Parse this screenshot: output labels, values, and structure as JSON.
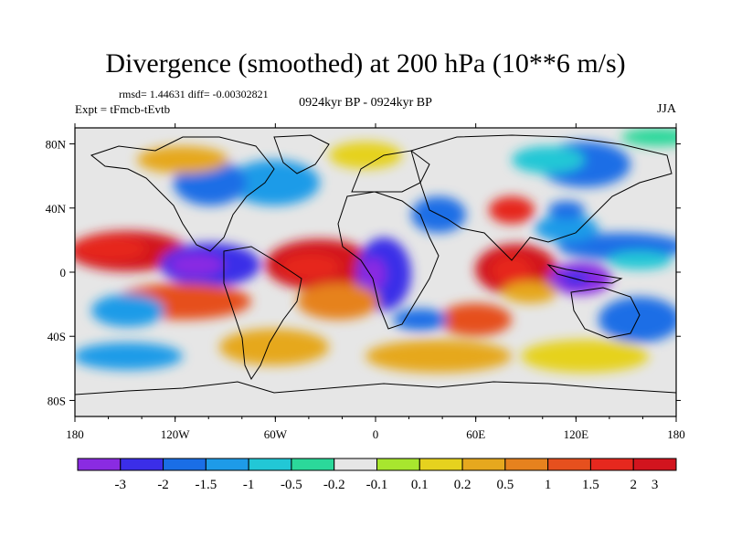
{
  "title": "Divergence (smoothed) at 200 hPa (10**6 m/s)",
  "stats_line": "rmsd= 1.44631 diff= -0.00302821",
  "expt_line": "Expt = tFmcb-tEvtb",
  "period_line": "0924kyr BP - 0924kyr BP",
  "season": "JJA",
  "colors": {
    "levels": [
      "#8a2be2",
      "#3b2ee8",
      "#1a6ee6",
      "#1e9be8",
      "#22c7d6",
      "#2bd89a",
      "#e6e6e6",
      "#a8e62e",
      "#e6d21e",
      "#e6a81e",
      "#e6821e",
      "#e6501e",
      "#e6281e",
      "#d2141e"
    ]
  },
  "chart_data": {
    "type": "map",
    "x_ticks": [
      "180",
      "120W",
      "60W",
      "0",
      "60E",
      "120E",
      "180"
    ],
    "y_ticks": [
      "80N",
      "40N",
      "0",
      "40S",
      "80S"
    ],
    "colorbar_labels": [
      "-3",
      "-2",
      "-1.5",
      "-1",
      "-0.5",
      "-0.2",
      "-0.1",
      "0.1",
      "0.2",
      "0.5",
      "1",
      "1.5",
      "2",
      "3"
    ]
  }
}
